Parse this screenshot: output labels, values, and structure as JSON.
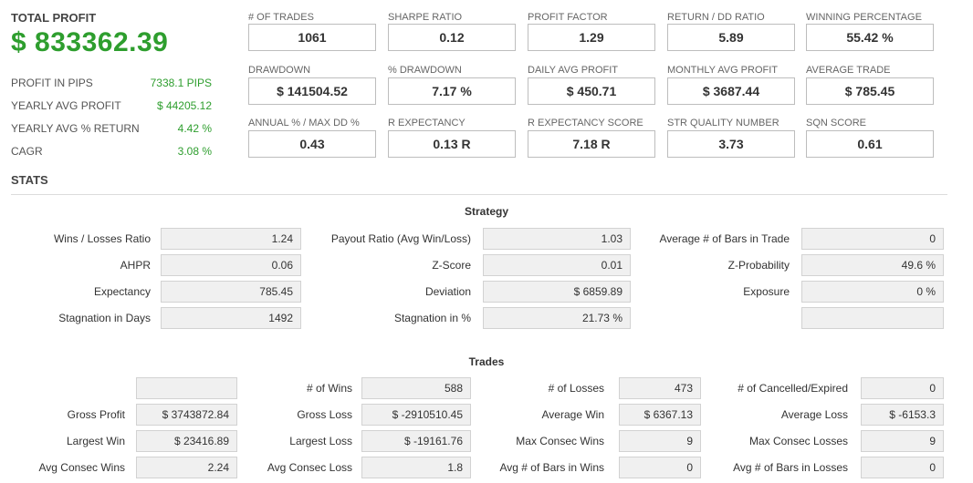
{
  "summary": {
    "total_profit_label": "TOTAL PROFIT",
    "total_profit_value": "$ 833362.39",
    "rows": [
      {
        "label": "PROFIT IN PIPS",
        "value": "7338.1 PIPS"
      },
      {
        "label": "YEARLY AVG PROFIT",
        "value": "$ 44205.12"
      },
      {
        "label": "YEARLY AVG % RETURN",
        "value": "4.42 %"
      },
      {
        "label": "CAGR",
        "value": "3.08 %"
      }
    ]
  },
  "metrics": [
    {
      "label": "# OF TRADES",
      "value": "1061"
    },
    {
      "label": "SHARPE RATIO",
      "value": "0.12"
    },
    {
      "label": "PROFIT FACTOR",
      "value": "1.29"
    },
    {
      "label": "RETURN / DD RATIO",
      "value": "5.89"
    },
    {
      "label": "WINNING PERCENTAGE",
      "value": "55.42 %"
    },
    {
      "label": "DRAWDOWN",
      "value": "$ 141504.52"
    },
    {
      "label": "% DRAWDOWN",
      "value": "7.17 %"
    },
    {
      "label": "DAILY AVG PROFIT",
      "value": "$ 450.71"
    },
    {
      "label": "MONTHLY AVG PROFIT",
      "value": "$ 3687.44"
    },
    {
      "label": "AVERAGE TRADE",
      "value": "$ 785.45"
    },
    {
      "label": "ANNUAL % / MAX DD %",
      "value": "0.43"
    },
    {
      "label": "R EXPECTANCY",
      "value": "0.13 R"
    },
    {
      "label": "R EXPECTANCY SCORE",
      "value": "7.18 R"
    },
    {
      "label": "STR QUALITY NUMBER",
      "value": "3.73"
    },
    {
      "label": "SQN SCORE",
      "value": "0.61"
    }
  ],
  "stats_title": "STATS",
  "strategy": {
    "title": "Strategy",
    "rows": [
      [
        {
          "label": "Wins / Losses Ratio",
          "value": "1.24"
        },
        {
          "label": "Payout Ratio (Avg Win/Loss)",
          "value": "1.03"
        },
        {
          "label": "Average # of Bars in Trade",
          "value": "0"
        }
      ],
      [
        {
          "label": "AHPR",
          "value": "0.06"
        },
        {
          "label": "Z-Score",
          "value": "0.01"
        },
        {
          "label": "Z-Probability",
          "value": "49.6 %"
        }
      ],
      [
        {
          "label": "Expectancy",
          "value": "785.45"
        },
        {
          "label": "Deviation",
          "value": "$ 6859.89"
        },
        {
          "label": "Exposure",
          "value": "0 %"
        }
      ],
      [
        {
          "label": "Stagnation in Days",
          "value": "1492"
        },
        {
          "label": "Stagnation in %",
          "value": "21.73 %"
        },
        {
          "label": "",
          "value": ""
        }
      ]
    ]
  },
  "trades": {
    "title": "Trades",
    "rows": [
      [
        {
          "label": "",
          "value": ""
        },
        {
          "label": "# of Wins",
          "value": "588"
        },
        {
          "label": "# of Losses",
          "value": "473"
        },
        {
          "label": "# of Cancelled/Expired",
          "value": "0"
        }
      ],
      [
        {
          "label": "Gross Profit",
          "value": "$ 3743872.84"
        },
        {
          "label": "Gross Loss",
          "value": "$ -2910510.45"
        },
        {
          "label": "Average Win",
          "value": "$ 6367.13"
        },
        {
          "label": "Average Loss",
          "value": "$ -6153.3"
        }
      ],
      [
        {
          "label": "Largest Win",
          "value": "$ 23416.89"
        },
        {
          "label": "Largest Loss",
          "value": "$ -19161.76"
        },
        {
          "label": "Max Consec Wins",
          "value": "9"
        },
        {
          "label": "Max Consec Losses",
          "value": "9"
        }
      ],
      [
        {
          "label": "Avg Consec Wins",
          "value": "2.24"
        },
        {
          "label": "Avg Consec Loss",
          "value": "1.8"
        },
        {
          "label": "Avg # of Bars in Wins",
          "value": "0"
        },
        {
          "label": "Avg # of Bars in Losses",
          "value": "0"
        }
      ]
    ]
  },
  "colors": {
    "accent_green": "#2e9e2e"
  }
}
